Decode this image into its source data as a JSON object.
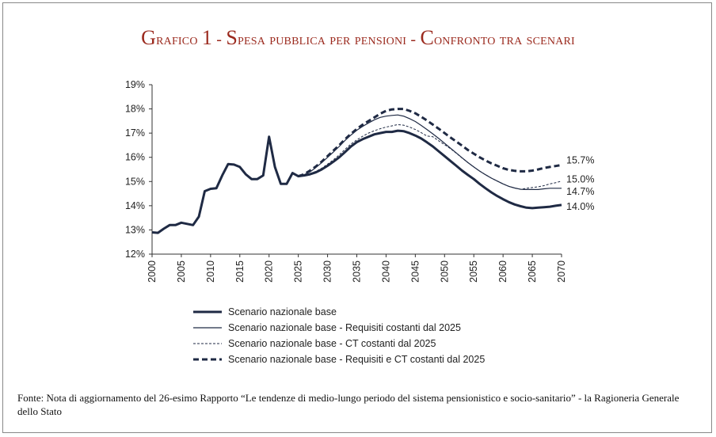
{
  "title": "Grafico 1 - Spesa pubblica per pensioni - Confronto tra scenari",
  "note": "Fonte: Nota di aggiornamento del 26-esimo Rapporto “Le tendenze di medio-lungo periodo del sistema pensionistico e socio-sanitario” - la Ragioneria Generale dello Stato",
  "chart_data": {
    "type": "line",
    "title": "Grafico 1 - Spesa pubblica per pensioni - Confronto tra scenari",
    "xlabel": "",
    "ylabel": "",
    "xlim": [
      2000,
      2070
    ],
    "ylim": [
      12,
      19
    ],
    "xticks": [
      "2000",
      "2005",
      "2010",
      "2015",
      "2020",
      "2025",
      "2030",
      "2035",
      "2040",
      "2045",
      "2050",
      "2055",
      "2060",
      "2065",
      "2070"
    ],
    "yticks": [
      "12%",
      "13%",
      "14%",
      "15%",
      "16%",
      "17%",
      "18%",
      "19%"
    ],
    "grid": false,
    "legend_position": "bottom",
    "series": [
      {
        "name": "Scenario nazionale base",
        "style": "thick-solid",
        "start": 2000,
        "end_label": "14.0%",
        "values": [
          12.9,
          12.88,
          13.05,
          13.2,
          13.2,
          13.3,
          13.25,
          13.2,
          13.55,
          14.6,
          14.7,
          14.72,
          15.25,
          15.72,
          15.7,
          15.6,
          15.3,
          15.1,
          15.1,
          15.25,
          16.85,
          15.6,
          14.9,
          14.9,
          15.35,
          15.22,
          15.25,
          15.3,
          15.38,
          15.5,
          15.65,
          15.82,
          16.0,
          16.22,
          16.45,
          16.63,
          16.75,
          16.85,
          16.95,
          17.0,
          17.05,
          17.05,
          17.1,
          17.08,
          17.0,
          16.9,
          16.78,
          16.62,
          16.45,
          16.25,
          16.05,
          15.85,
          15.65,
          15.45,
          15.27,
          15.1,
          14.9,
          14.72,
          14.55,
          14.4,
          14.27,
          14.15,
          14.05,
          13.98,
          13.92,
          13.9,
          13.92,
          13.94,
          13.96,
          14.0,
          14.03
        ]
      },
      {
        "name": "Scenario nazionale base - Requisiti costanti dal 2025",
        "style": "thin-solid",
        "start": 2025,
        "end_label": "14.7%",
        "values": [
          15.22,
          15.28,
          15.4,
          15.58,
          15.78,
          16.0,
          16.22,
          16.45,
          16.7,
          16.92,
          17.12,
          17.28,
          17.42,
          17.55,
          17.65,
          17.7,
          17.73,
          17.75,
          17.7,
          17.6,
          17.48,
          17.32,
          17.15,
          16.97,
          16.78,
          16.58,
          16.38,
          16.18,
          15.98,
          15.78,
          15.6,
          15.43,
          15.28,
          15.14,
          15.02,
          14.9,
          14.8,
          14.73,
          14.68,
          14.67,
          14.67,
          14.67,
          14.7,
          14.72,
          14.72,
          14.72
        ]
      },
      {
        "name": "Scenario nazionale base - CT costanti dal 2025",
        "style": "thin-dashed",
        "start": 2025,
        "end_label": "15.0%",
        "values": [
          15.22,
          15.26,
          15.32,
          15.42,
          15.55,
          15.72,
          15.9,
          16.1,
          16.33,
          16.55,
          16.72,
          16.87,
          17.0,
          17.1,
          17.18,
          17.25,
          17.3,
          17.35,
          17.33,
          17.25,
          17.15,
          17.02,
          16.88,
          16.85,
          16.68,
          16.52,
          16.36,
          16.17,
          15.97,
          15.78,
          15.6,
          15.43,
          15.28,
          15.14,
          15.02,
          14.9,
          14.8,
          14.73,
          14.68,
          14.72,
          14.75,
          14.78,
          14.83,
          14.9,
          14.95,
          15.02
        ]
      },
      {
        "name": "Scenario nazionale base - Requisiti e CT costanti dal 2025",
        "style": "thick-dashed",
        "start": 2025,
        "end_label": "15.7%",
        "values": [
          15.22,
          15.3,
          15.45,
          15.62,
          15.82,
          16.05,
          16.28,
          16.5,
          16.75,
          16.97,
          17.17,
          17.35,
          17.5,
          17.65,
          17.8,
          17.92,
          17.98,
          18.0,
          18.0,
          17.92,
          17.82,
          17.68,
          17.52,
          17.35,
          17.18,
          17.0,
          16.82,
          16.65,
          16.48,
          16.3,
          16.15,
          16.0,
          15.87,
          15.75,
          15.65,
          15.55,
          15.48,
          15.44,
          15.42,
          15.42,
          15.45,
          15.5,
          15.56,
          15.6,
          15.64,
          15.68
        ]
      }
    ]
  }
}
